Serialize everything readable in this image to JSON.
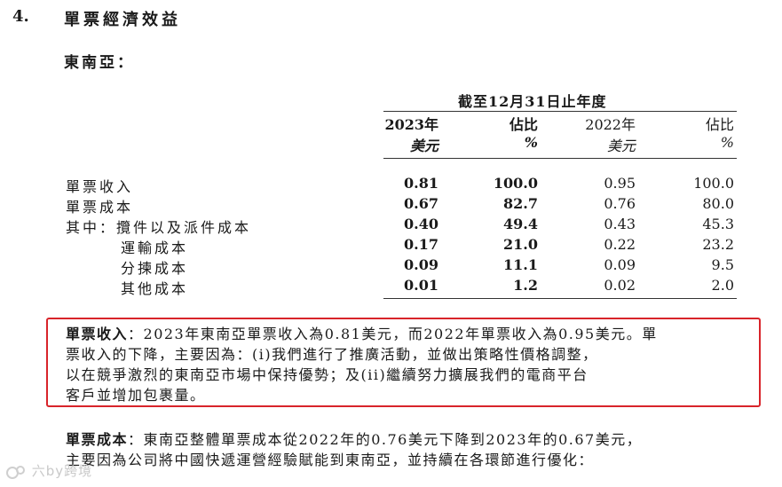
{
  "section": {
    "number": "4.",
    "title": "單票經濟效益"
  },
  "region": "東南亞：",
  "table": {
    "period_header": "截至12月31日止年度",
    "columns": [
      {
        "year": "2023年",
        "unit": "美元"
      },
      {
        "year": "佔比",
        "unit": "%"
      },
      {
        "year": "2022年",
        "unit": "美元"
      },
      {
        "year": "佔比",
        "unit": "%"
      }
    ],
    "rows": [
      {
        "label": "單票收入",
        "values": [
          "0.81",
          "100.0",
          "0.95",
          "100.0"
        ]
      },
      {
        "label": "單票成本",
        "values": [
          "0.67",
          "82.7",
          "0.76",
          "80.0"
        ]
      },
      {
        "label": "其中：攬件以及派件成本",
        "values": [
          "0.40",
          "49.4",
          "0.43",
          "45.3"
        ]
      },
      {
        "label": "運輸成本",
        "values": [
          "0.17",
          "21.0",
          "0.22",
          "23.2"
        ]
      },
      {
        "label": "分揀成本",
        "values": [
          "0.09",
          "11.1",
          "0.09",
          "9.5"
        ]
      },
      {
        "label": "其他成本",
        "values": [
          "0.01",
          "1.2",
          "0.02",
          "2.0"
        ]
      }
    ]
  },
  "para_revenue": {
    "lead": "單票收入",
    "lines": [
      "：2023年東南亞單票收入為0.81美元，而2022年單票收入為0.95美元。單",
      "票收入的下降，主要因為：(i)我們進行了推廣活動，並做出策略性價格調整，",
      "以在競爭激烈的東南亞市場中保持優勢；及(ii)繼續努力擴展我們的電商平台",
      "客戶並增加包裹量。"
    ]
  },
  "para_cost": {
    "lead": "單票成本",
    "lines": [
      "：東南亞整體單票成本從2022年的0.76美元下降到2023年的0.67美元，",
      "主要因為公司將中國快遞運營經驗賦能到東南亞，並持續在各環節進行優化："
    ]
  },
  "watermark": "六by跨境",
  "colors": {
    "highlight_border": "#d8242a",
    "text": "#1a1a1a"
  }
}
